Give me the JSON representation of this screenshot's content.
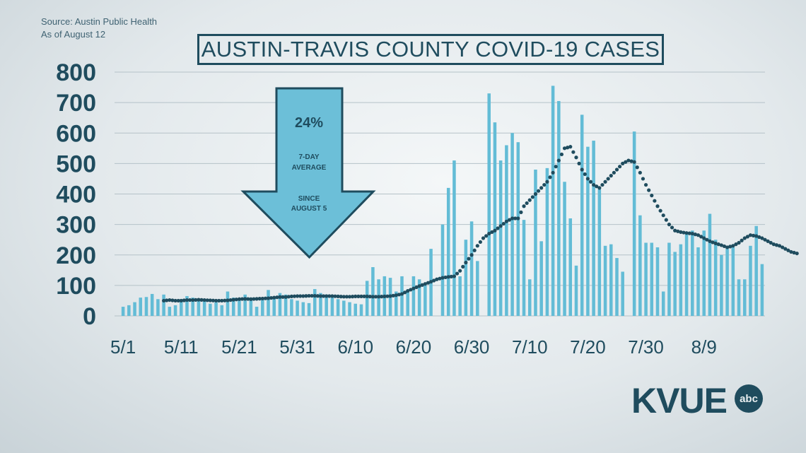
{
  "source": {
    "line1": "Source: Austin Public Health",
    "line2": "As of August 12"
  },
  "title": "AUSTIN-TRAVIS COUNTY COVID-19 CASES",
  "callout": {
    "percent": "24%",
    "line1": "7-DAY",
    "line2": "AVERAGE",
    "line3": "SINCE",
    "line4": "AUGUST 5",
    "color": "#6cbfd8"
  },
  "logo": {
    "text": "KVUE",
    "badge": "abc"
  },
  "colors": {
    "bar": "#63bcd6",
    "average": "#1f4c5e",
    "text": "#1f4c5e",
    "grid": "#b5c2c8"
  },
  "chart_data": {
    "type": "bar",
    "title": "AUSTIN-TRAVIS COUNTY COVID-19 CASES",
    "xlabel": "",
    "ylabel": "",
    "ylim": [
      0,
      800
    ],
    "yticks": [
      "0",
      "100",
      "200",
      "300",
      "400",
      "500",
      "600",
      "700",
      "800"
    ],
    "xticks": [
      "5/1",
      "5/11",
      "5/21",
      "5/31",
      "6/10",
      "6/20",
      "6/30",
      "7/10",
      "7/20",
      "7/30",
      "8/9"
    ],
    "grid": true,
    "series": [
      {
        "type": "bar",
        "values": [
          30,
          35,
          45,
          60,
          62,
          72,
          55,
          70,
          30,
          35,
          55,
          65,
          60,
          55,
          50,
          40,
          45,
          35,
          80,
          60,
          55,
          70,
          60,
          30,
          60,
          85,
          60,
          75,
          70,
          55,
          50,
          45,
          42,
          88,
          75,
          70,
          65,
          55,
          50,
          45,
          40,
          38,
          115,
          160,
          120,
          130,
          125,
          80,
          130,
          85,
          130,
          120,
          100,
          220,
          0,
          300,
          420,
          510,
          130,
          250,
          310,
          180,
          0,
          730,
          635,
          510,
          560,
          600,
          570,
          315,
          120,
          480,
          245,
          485,
          755,
          705,
          440,
          320,
          165,
          660,
          555,
          575,
          415,
          230,
          235,
          190,
          145,
          0,
          605,
          330,
          240,
          240,
          225,
          80,
          240,
          210,
          235,
          275,
          280,
          225,
          280,
          335,
          250,
          200,
          230,
          225,
          120,
          120,
          230,
          295,
          170
        ]
      },
      {
        "type": "line",
        "style": "dotted",
        "start_index": 7,
        "values": [
          50,
          52,
          50,
          50,
          52,
          52,
          53,
          52,
          51,
          50,
          50,
          51,
          53,
          55,
          56,
          55,
          56,
          57,
          58,
          60,
          62,
          62,
          64,
          65,
          65,
          66,
          66,
          65,
          65,
          65,
          64,
          63,
          63,
          64,
          64,
          64,
          63,
          63,
          64,
          65,
          68,
          72,
          82,
          90,
          98,
          105,
          112,
          120,
          125,
          128,
          130,
          148,
          175,
          200,
          230,
          255,
          270,
          280,
          295,
          310,
          320,
          320,
          360,
          380,
          400,
          420,
          440,
          470,
          510,
          550,
          555,
          520,
          480,
          450,
          430,
          420,
          440,
          460,
          480,
          500,
          510,
          505,
          470,
          430,
          395,
          360,
          330,
          300,
          280,
          275,
          272,
          270,
          265,
          255,
          245,
          238,
          232,
          225,
          230,
          240,
          255,
          265,
          262,
          255,
          245,
          235,
          230,
          220,
          210,
          205
        ]
      }
    ]
  }
}
